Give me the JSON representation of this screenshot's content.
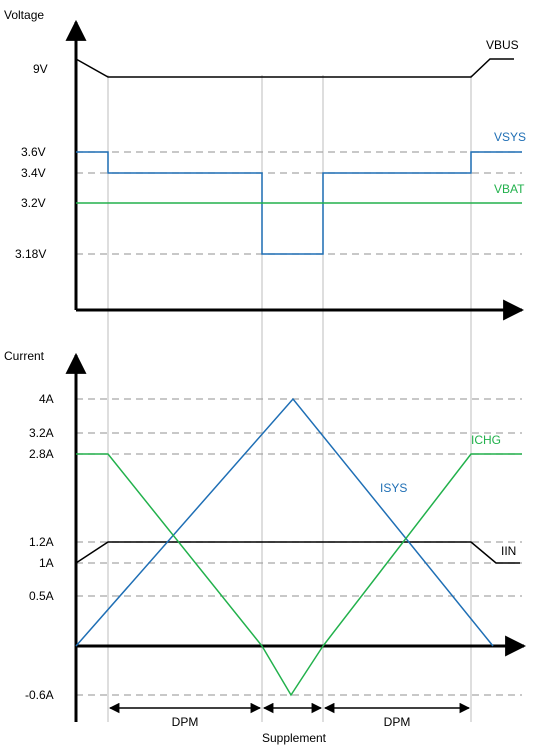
{
  "colors": {
    "black": "#000000",
    "blue": "#1f6fb5",
    "green": "#22b14c",
    "grid": "#a6a6a6"
  },
  "voltage_panel": {
    "axis_label": "Voltage",
    "tick_labels": [
      {
        "text": "9V",
        "value": 9
      },
      {
        "text": "3.6V",
        "value": 3.6
      },
      {
        "text": "3.4V",
        "value": 3.4
      },
      {
        "text": "3.2V",
        "value": 3.2
      },
      {
        "text": "3.18V",
        "value": 3.18
      }
    ],
    "series_labels": {
      "vbus": "VBUS",
      "vsys": "VSYS",
      "vbat": "VBAT"
    }
  },
  "current_panel": {
    "axis_label": "Current",
    "tick_labels": [
      {
        "text": "4A",
        "value": 4
      },
      {
        "text": "3.2A",
        "value": 3.2
      },
      {
        "text": "2.8A",
        "value": 2.8
      },
      {
        "text": "1.2A",
        "value": 1.2
      },
      {
        "text": "1A",
        "value": 1
      },
      {
        "text": "0.5A",
        "value": 0.5
      },
      {
        "text": "-0.6A",
        "value": -0.6
      }
    ],
    "series_labels": {
      "ichg": "ICHG",
      "isys": "ISYS",
      "iin": "IIN"
    }
  },
  "regions": {
    "dpm_left": "DPM",
    "dpm_right": "DPM",
    "supplement": "Supplement"
  }
}
